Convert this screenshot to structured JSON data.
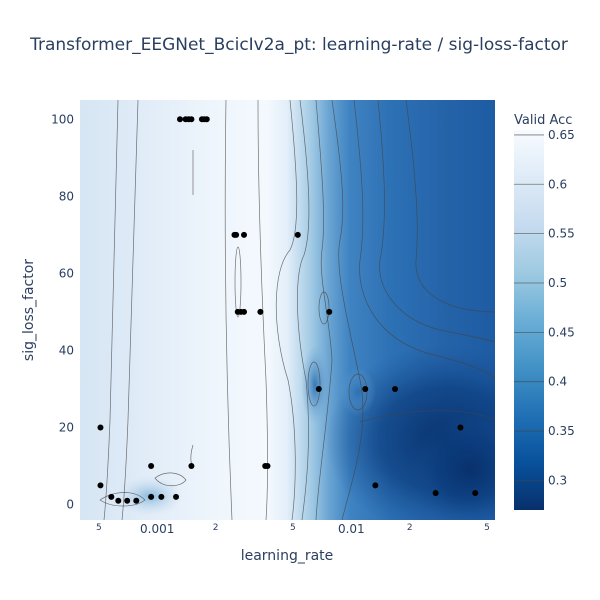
{
  "chart_data": {
    "type": "heatmap",
    "title": "Transformer_EEGNet_BcicIv2a_pt: learning-rate / sig-loss-factor",
    "xlabel": "learning_rate",
    "ylabel": "sig_loss_factor",
    "x_scale": "log",
    "xlim": [
      0.0004,
      0.055
    ],
    "ylim": [
      -4,
      105
    ],
    "x_ticks": [
      {
        "value": 0.0005,
        "label": "5",
        "minor": true
      },
      {
        "value": 0.001,
        "label": "0.001",
        "minor": false
      },
      {
        "value": 0.002,
        "label": "2",
        "minor": true
      },
      {
        "value": 0.005,
        "label": "5",
        "minor": true
      },
      {
        "value": 0.01,
        "label": "0.01",
        "minor": false
      },
      {
        "value": 0.02,
        "label": "2",
        "minor": true
      },
      {
        "value": 0.05,
        "label": "5",
        "minor": true
      }
    ],
    "y_ticks": [
      0,
      20,
      40,
      60,
      80,
      100
    ],
    "colorbar": {
      "title": "Valid Acc",
      "range": [
        0.27,
        0.655
      ],
      "ticks": [
        0.3,
        0.35,
        0.4,
        0.45,
        0.5,
        0.55,
        0.6,
        0.65
      ],
      "colorscale": [
        "#08306b",
        "#08519c",
        "#2171b5",
        "#4292c6",
        "#6baed6",
        "#9ecae1",
        "#c6dbef",
        "#deebf7",
        "#f7fbff"
      ]
    },
    "points": [
      {
        "x": 0.00131,
        "y": 100
      },
      {
        "x": 0.0014,
        "y": 100
      },
      {
        "x": 0.00145,
        "y": 100
      },
      {
        "x": 0.0015,
        "y": 100
      },
      {
        "x": 0.0017,
        "y": 100
      },
      {
        "x": 0.00175,
        "y": 100
      },
      {
        "x": 0.0018,
        "y": 100
      },
      {
        "x": 0.0025,
        "y": 70
      },
      {
        "x": 0.00255,
        "y": 70
      },
      {
        "x": 0.0028,
        "y": 70
      },
      {
        "x": 0.0053,
        "y": 70
      },
      {
        "x": 0.0026,
        "y": 50
      },
      {
        "x": 0.0027,
        "y": 50
      },
      {
        "x": 0.0028,
        "y": 50
      },
      {
        "x": 0.0034,
        "y": 50
      },
      {
        "x": 0.0077,
        "y": 50
      },
      {
        "x": 0.0036,
        "y": 10
      },
      {
        "x": 0.0037,
        "y": 10
      },
      {
        "x": 0.0015,
        "y": 10
      },
      {
        "x": 0.00093,
        "y": 10
      },
      {
        "x": 0.00051,
        "y": 20
      },
      {
        "x": 0.00051,
        "y": 5
      },
      {
        "x": 0.00058,
        "y": 2
      },
      {
        "x": 0.00063,
        "y": 1
      },
      {
        "x": 0.0007,
        "y": 1
      },
      {
        "x": 0.00078,
        "y": 1
      },
      {
        "x": 0.00093,
        "y": 2
      },
      {
        "x": 0.00105,
        "y": 2
      },
      {
        "x": 0.00125,
        "y": 2
      },
      {
        "x": 0.0068,
        "y": 30
      },
      {
        "x": 0.0118,
        "y": 30
      },
      {
        "x": 0.0168,
        "y": 30
      },
      {
        "x": 0.0365,
        "y": 20
      },
      {
        "x": 0.0133,
        "y": 5
      },
      {
        "x": 0.0272,
        "y": 3
      },
      {
        "x": 0.0435,
        "y": 3
      }
    ]
  }
}
